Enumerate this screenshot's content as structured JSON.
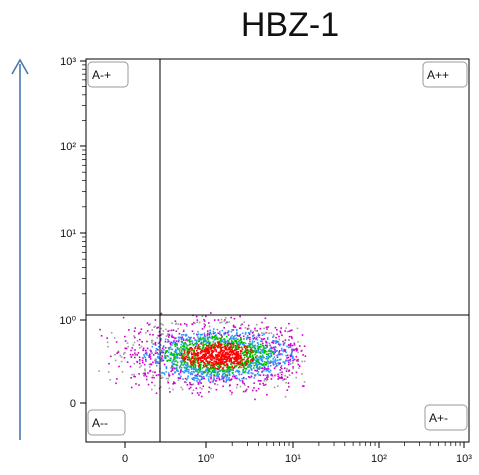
{
  "chart_data": {
    "type": "scatter",
    "title": "HBZ-1",
    "xlabel": "",
    "ylabel": "",
    "x_scale": "log (with 0 region)",
    "y_scale": "log (with 0 region)",
    "x_ticks": [
      "0",
      "10⁰",
      "10¹",
      "10²",
      "10³"
    ],
    "y_ticks": [
      "0",
      "10⁰",
      "10¹",
      "10²",
      "10³"
    ],
    "grid": false,
    "legend": "none",
    "quadrant_gates": {
      "x_threshold": "between 0 and 10⁰",
      "y_threshold": "10⁰",
      "labels": [
        "A-+",
        "A++",
        "A--",
        "A+-"
      ]
    },
    "population": {
      "description": "single dense cluster in lower-right quadrant (A+-)",
      "x_center": 1.5,
      "x_range": [
        0.1,
        8
      ],
      "y_center": "below 10⁰ (≈0.4 on display scale)",
      "density_colors": [
        "#ff0000",
        "#00c000",
        "#3399ff",
        "#cc00cc",
        "#a0a0a0"
      ]
    }
  },
  "axis_arrow": "upward arrow beside y-axis",
  "colors": {
    "axis": "#000000",
    "arrow": "#4a78b0",
    "dense": "#ff0000",
    "mid": "#00c000",
    "mid2": "#3399ff",
    "sparse": "#cc00cc",
    "outlier": "#a0a0a0"
  }
}
